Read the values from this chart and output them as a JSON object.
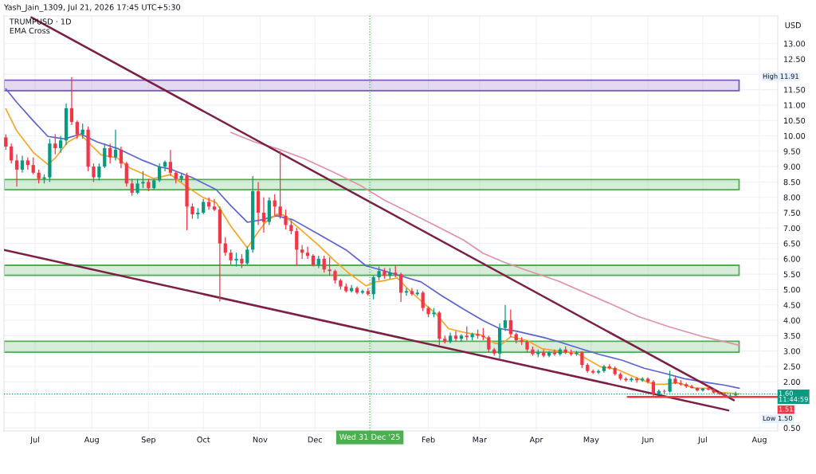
{
  "chart_data": {
    "type": "candlestick",
    "title": "TRUMPUSD · 1D",
    "subtitle": "EMA Cross",
    "ylabel": "USD",
    "annotations": [
      "Yash_Jain_1309, Jul 21, 2026 17:45 UTC+5:30",
      "High 11.91",
      {
        "text": "1.51",
        "x": "2026-08-11",
        "y": 1.51
      },
      "Low 1.50"
    ],
    "xlim": [
      "2025-06-14",
      "2026-08-11"
    ],
    "xticks": [
      {
        "value": "2025-07-01",
        "label": "Jul"
      },
      {
        "value": "2025-08-01",
        "label": "Aug"
      },
      {
        "value": "2025-09-01",
        "label": "Sep"
      },
      {
        "value": "2025-10-01",
        "label": "Oct"
      },
      {
        "value": "2025-11-01",
        "label": "Nov"
      },
      {
        "value": "2025-12-01",
        "label": "Dec"
      },
      {
        "value": "2026-01-01",
        "label": null
      },
      {
        "value": "2026-02-01",
        "label": "Feb"
      },
      {
        "value": "2026-03-01",
        "label": "Mar"
      },
      {
        "value": "2026-04-01",
        "label": "Apr"
      },
      {
        "value": "2026-05-01",
        "label": "May"
      },
      {
        "value": "2026-06-01",
        "label": "Jun"
      },
      {
        "value": "2026-07-01",
        "label": "Jul"
      },
      {
        "value": "2026-08-01",
        "label": "Aug"
      }
    ],
    "ylim": [
      0.4,
      13.9
    ],
    "yticks": [
      {
        "value": 0.5,
        "label": "0.50"
      },
      {
        "value": 1.0,
        "label": null
      },
      {
        "value": 1.5,
        "label": null
      },
      {
        "value": 2.0,
        "label": "2.00"
      },
      {
        "value": 2.5,
        "label": "2.50"
      },
      {
        "value": 3.0,
        "label": "3.00"
      },
      {
        "value": 3.5,
        "label": "3.50"
      },
      {
        "value": 4.0,
        "label": "4.00"
      },
      {
        "value": 4.5,
        "label": "4.50"
      },
      {
        "value": 5.0,
        "label": "5.00"
      },
      {
        "value": 5.5,
        "label": "5.50"
      },
      {
        "value": 6.0,
        "label": "6.00"
      },
      {
        "value": 6.5,
        "label": "6.50"
      },
      {
        "value": 7.0,
        "label": "7.00"
      },
      {
        "value": 7.5,
        "label": "7.50"
      },
      {
        "value": 8.0,
        "label": "8.00"
      },
      {
        "value": 8.5,
        "label": "8.50"
      },
      {
        "value": 9.0,
        "label": "9.00"
      },
      {
        "value": 9.5,
        "label": "9.50"
      },
      {
        "value": 10.0,
        "label": "10.00"
      },
      {
        "value": 10.5,
        "label": "10.50"
      },
      {
        "value": 11.0,
        "label": "11.00"
      },
      {
        "value": 11.5,
        "label": "11.50"
      },
      {
        "value": 12.0,
        "label": null
      },
      {
        "value": 12.5,
        "label": "12.50"
      },
      {
        "value": 13.0,
        "label": "13.00"
      }
    ],
    "grid": true,
    "bands": [
      {
        "axis": "y",
        "from": 11.47,
        "to": 11.81,
        "color": "#7e57c2"
      },
      {
        "axis": "y",
        "from": 8.25,
        "to": 8.58,
        "color": "#4caf50"
      },
      {
        "axis": "y",
        "from": 5.46,
        "to": 5.79,
        "color": "#4caf50"
      },
      {
        "axis": "y",
        "from": 2.96,
        "to": 3.32,
        "color": "#4caf50"
      }
    ],
    "ref_lines": [
      {
        "axis": "y",
        "value": 1.6,
        "label": "1.60\n11:44:59",
        "color": "#089981",
        "line_style": "dotted"
      },
      {
        "axis": "x",
        "value": "2025-12-31",
        "label": "Wed 31 Dec '25",
        "color": "#4caf50",
        "line_style": "dotted"
      }
    ],
    "x": [
      "2025-06-15",
      "2025-06-18",
      "2025-06-21",
      "2025-06-24",
      "2025-06-27",
      "2025-06-30",
      "2025-07-03",
      "2025-07-06",
      "2025-07-09",
      "2025-07-12",
      "2025-07-15",
      "2025-07-18",
      "2025-07-21",
      "2025-07-24",
      "2025-07-27",
      "2025-07-30",
      "2025-08-02",
      "2025-08-05",
      "2025-08-08",
      "2025-08-11",
      "2025-08-14",
      "2025-08-17",
      "2025-08-20",
      "2025-08-23",
      "2025-08-26",
      "2025-08-29",
      "2025-09-01",
      "2025-09-04",
      "2025-09-07",
      "2025-09-10",
      "2025-09-13",
      "2025-09-16",
      "2025-09-19",
      "2025-09-22",
      "2025-09-25",
      "2025-09-28",
      "2025-10-01",
      "2025-10-04",
      "2025-10-07",
      "2025-10-10",
      "2025-10-13",
      "2025-10-16",
      "2025-10-19",
      "2025-10-22",
      "2025-10-25",
      "2025-10-28",
      "2025-10-31",
      "2025-11-03",
      "2025-11-06",
      "2025-11-09",
      "2025-11-12",
      "2025-11-15",
      "2025-11-18",
      "2025-11-21",
      "2025-11-24",
      "2025-11-27",
      "2025-11-30",
      "2025-12-03",
      "2025-12-06",
      "2025-12-09",
      "2025-12-12",
      "2025-12-15",
      "2025-12-18",
      "2025-12-21",
      "2025-12-24",
      "2025-12-27",
      "2025-12-30",
      "2026-01-02",
      "2026-01-05",
      "2026-01-08",
      "2026-01-11",
      "2026-01-14",
      "2026-01-17",
      "2026-01-20",
      "2026-01-23",
      "2026-01-26",
      "2026-01-29",
      "2026-02-01",
      "2026-02-04",
      "2026-02-07",
      "2026-02-10",
      "2026-02-13",
      "2026-02-16",
      "2026-02-19",
      "2026-02-22",
      "2026-02-25",
      "2026-02-28",
      "2026-03-03",
      "2026-03-06",
      "2026-03-09",
      "2026-03-12",
      "2026-03-15",
      "2026-03-18",
      "2026-03-21",
      "2026-03-24",
      "2026-03-27",
      "2026-03-30",
      "2026-04-02",
      "2026-04-05",
      "2026-04-08",
      "2026-04-11",
      "2026-04-14",
      "2026-04-17",
      "2026-04-20",
      "2026-04-23",
      "2026-04-26",
      "2026-04-29",
      "2026-05-02",
      "2026-05-05",
      "2026-05-08",
      "2026-05-11",
      "2026-05-14",
      "2026-05-17",
      "2026-05-20",
      "2026-05-23",
      "2026-05-26",
      "2026-05-29",
      "2026-06-01",
      "2026-06-04",
      "2026-06-07",
      "2026-06-10",
      "2026-06-13",
      "2026-06-16",
      "2026-06-19",
      "2026-06-22",
      "2026-06-25",
      "2026-06-28",
      "2026-07-01",
      "2026-07-04",
      "2026-07-07",
      "2026-07-10",
      "2026-07-13",
      "2026-07-16",
      "2026-07-19"
    ],
    "ohlc": [
      [
        9.95,
        10.05,
        9.55,
        9.65
      ],
      [
        9.65,
        9.75,
        9.1,
        9.2
      ],
      [
        9.2,
        9.4,
        8.35,
        8.9
      ],
      [
        8.9,
        9.35,
        8.8,
        9.2
      ],
      [
        9.2,
        9.3,
        8.9,
        9.05
      ],
      [
        9.05,
        9.3,
        8.75,
        8.8
      ],
      [
        8.8,
        8.9,
        8.45,
        8.6
      ],
      [
        8.6,
        8.75,
        8.45,
        8.65
      ],
      [
        8.65,
        9.9,
        8.5,
        9.75
      ],
      [
        9.75,
        10.05,
        9.4,
        9.6
      ],
      [
        9.6,
        10.0,
        9.45,
        9.85
      ],
      [
        9.85,
        11.05,
        9.7,
        10.9
      ],
      [
        10.9,
        11.91,
        10.35,
        10.45
      ],
      [
        10.45,
        10.5,
        9.9,
        10.05
      ],
      [
        10.05,
        10.4,
        9.9,
        10.2
      ],
      [
        10.2,
        10.3,
        8.85,
        9.0
      ],
      [
        9.0,
        9.1,
        8.5,
        8.65
      ],
      [
        8.65,
        9.1,
        8.55,
        9.0
      ],
      [
        9.0,
        9.75,
        8.95,
        9.6
      ],
      [
        9.6,
        9.75,
        9.1,
        9.3
      ],
      [
        9.3,
        10.2,
        9.2,
        9.55
      ],
      [
        9.55,
        9.65,
        8.95,
        9.1
      ],
      [
        9.1,
        9.15,
        8.35,
        8.45
      ],
      [
        8.45,
        8.6,
        8.05,
        8.15
      ],
      [
        8.15,
        8.6,
        8.1,
        8.45
      ],
      [
        8.45,
        8.85,
        8.3,
        8.5
      ],
      [
        8.5,
        8.6,
        8.2,
        8.3
      ],
      [
        8.3,
        8.6,
        8.25,
        8.55
      ],
      [
        8.55,
        9.1,
        8.5,
        9.0
      ],
      [
        9.0,
        9.2,
        8.85,
        9.15
      ],
      [
        9.15,
        9.54,
        8.7,
        8.8
      ],
      [
        8.8,
        8.85,
        8.45,
        8.6
      ],
      [
        8.6,
        8.8,
        8.5,
        8.7
      ],
      [
        8.7,
        8.8,
        6.93,
        7.7
      ],
      [
        7.7,
        7.8,
        7.3,
        7.45
      ],
      [
        7.45,
        7.65,
        7.3,
        7.5
      ],
      [
        7.5,
        7.95,
        7.45,
        7.85
      ],
      [
        7.85,
        8.0,
        7.6,
        7.7
      ],
      [
        7.7,
        7.95,
        7.55,
        7.6
      ],
      [
        7.6,
        7.7,
        4.61,
        6.5
      ],
      [
        6.5,
        6.7,
        6.1,
        6.2
      ],
      [
        6.2,
        6.3,
        5.8,
        5.95
      ],
      [
        5.95,
        6.2,
        5.75,
        6.0
      ],
      [
        6.0,
        6.15,
        5.7,
        5.85
      ],
      [
        5.85,
        6.4,
        5.8,
        6.3
      ],
      [
        6.3,
        8.69,
        6.2,
        8.2
      ],
      [
        8.2,
        8.5,
        7.1,
        7.5
      ],
      [
        7.5,
        8.0,
        6.85,
        7.2
      ],
      [
        7.2,
        8.0,
        7.1,
        7.9
      ],
      [
        7.9,
        8.1,
        7.4,
        7.7
      ],
      [
        7.7,
        9.51,
        7.3,
        7.4
      ],
      [
        7.4,
        7.6,
        6.95,
        7.1
      ],
      [
        7.1,
        7.25,
        6.8,
        6.9
      ],
      [
        6.9,
        7.0,
        5.77,
        6.3
      ],
      [
        6.3,
        6.45,
        6.0,
        6.2
      ],
      [
        6.2,
        6.4,
        6.0,
        6.1
      ],
      [
        6.1,
        6.15,
        5.75,
        5.8
      ],
      [
        5.8,
        6.1,
        5.7,
        6.0
      ],
      [
        6.0,
        6.1,
        5.55,
        5.65
      ],
      [
        5.65,
        6.05,
        5.45,
        5.6
      ],
      [
        5.6,
        5.65,
        5.2,
        5.3
      ],
      [
        5.3,
        5.35,
        5.0,
        5.1
      ],
      [
        5.1,
        5.2,
        4.9,
        4.95
      ],
      [
        4.95,
        5.15,
        4.9,
        5.05
      ],
      [
        5.05,
        5.1,
        4.85,
        4.9
      ],
      [
        4.9,
        5.0,
        4.85,
        4.95
      ],
      [
        4.95,
        5.05,
        4.8,
        4.85
      ],
      [
        4.85,
        5.45,
        4.68,
        5.4
      ],
      [
        5.4,
        5.75,
        5.3,
        5.6
      ],
      [
        5.6,
        5.7,
        5.35,
        5.45
      ],
      [
        5.45,
        5.7,
        5.35,
        5.55
      ],
      [
        5.55,
        5.77,
        5.4,
        5.5
      ],
      [
        5.5,
        5.55,
        4.6,
        4.9
      ],
      [
        4.9,
        5.05,
        4.8,
        4.95
      ],
      [
        4.95,
        5.05,
        4.8,
        4.85
      ],
      [
        4.85,
        5.0,
        4.8,
        4.9
      ],
      [
        4.9,
        4.95,
        4.3,
        4.4
      ],
      [
        4.4,
        4.45,
        4.1,
        4.2
      ],
      [
        4.2,
        4.4,
        4.1,
        4.25
      ],
      [
        4.25,
        4.3,
        3.19,
        3.4
      ],
      [
        3.4,
        3.5,
        3.25,
        3.3
      ],
      [
        3.3,
        3.6,
        3.25,
        3.5
      ],
      [
        3.5,
        3.65,
        3.3,
        3.4
      ],
      [
        3.4,
        3.55,
        3.3,
        3.5
      ],
      [
        3.5,
        3.8,
        3.35,
        3.45
      ],
      [
        3.45,
        3.6,
        3.35,
        3.55
      ],
      [
        3.55,
        3.7,
        3.4,
        3.5
      ],
      [
        3.5,
        3.75,
        3.35,
        3.45
      ],
      [
        3.45,
        3.5,
        2.95,
        3.05
      ],
      [
        3.05,
        3.1,
        2.85,
        2.92
      ],
      [
        2.92,
        3.9,
        2.75,
        3.75
      ],
      [
        3.75,
        4.5,
        3.65,
        4.0
      ],
      [
        4.0,
        4.35,
        3.45,
        3.55
      ],
      [
        3.55,
        3.6,
        3.25,
        3.35
      ],
      [
        3.35,
        3.45,
        3.2,
        3.3
      ],
      [
        3.3,
        3.35,
        2.95,
        3.05
      ],
      [
        3.05,
        3.15,
        2.85,
        2.9
      ],
      [
        2.9,
        3.05,
        2.8,
        2.95
      ],
      [
        2.95,
        3.05,
        2.8,
        2.85
      ],
      [
        2.85,
        3.0,
        2.8,
        2.95
      ],
      [
        2.95,
        3.05,
        2.85,
        2.9
      ],
      [
        2.9,
        3.1,
        2.85,
        3.05
      ],
      [
        3.05,
        3.15,
        2.9,
        2.95
      ],
      [
        2.95,
        3.05,
        2.85,
        2.9
      ],
      [
        2.9,
        3.0,
        2.85,
        2.95
      ],
      [
        2.95,
        3.0,
        2.45,
        2.55
      ],
      [
        2.55,
        2.6,
        2.3,
        2.35
      ],
      [
        2.35,
        2.4,
        2.25,
        2.3
      ],
      [
        2.3,
        2.4,
        2.25,
        2.35
      ],
      [
        2.35,
        2.55,
        2.3,
        2.5
      ],
      [
        2.5,
        2.57,
        2.4,
        2.45
      ],
      [
        2.45,
        2.5,
        2.2,
        2.25
      ],
      [
        2.25,
        2.3,
        2.05,
        2.1
      ],
      [
        2.1,
        2.15,
        2.0,
        2.05
      ],
      [
        2.05,
        2.15,
        2.0,
        2.1
      ],
      [
        2.1,
        2.15,
        1.97,
        2.05
      ],
      [
        2.05,
        2.15,
        2.0,
        2.1
      ],
      [
        2.1,
        2.15,
        1.95,
        2.0
      ],
      [
        2.0,
        2.05,
        1.53,
        1.6
      ],
      [
        1.6,
        1.75,
        1.58,
        1.7
      ],
      [
        1.7,
        1.75,
        1.62,
        1.68
      ],
      [
        1.68,
        2.36,
        1.65,
        2.1
      ],
      [
        2.1,
        2.2,
        1.92,
        1.95
      ],
      [
        1.95,
        2.05,
        1.88,
        1.92
      ],
      [
        1.92,
        1.97,
        1.8,
        1.85
      ],
      [
        1.85,
        1.9,
        1.78,
        1.8
      ],
      [
        1.8,
        1.82,
        1.68,
        1.72
      ],
      [
        1.72,
        1.8,
        1.68,
        1.78
      ],
      [
        1.78,
        1.88,
        1.72,
        1.75
      ],
      [
        1.75,
        1.78,
        1.62,
        1.65
      ],
      [
        1.65,
        1.7,
        1.58,
        1.6
      ],
      [
        1.6,
        1.65,
        1.52,
        1.55
      ],
      [
        1.55,
        1.6,
        1.5,
        1.56
      ],
      [
        1.56,
        1.68,
        1.54,
        1.6
      ]
    ],
    "series": [
      {
        "type": "line",
        "color": "#e091a8",
        "x": [
          "2025-10-16",
          "2025-10-29",
          "2025-11-10",
          "2025-11-25",
          "2025-12-11",
          "2025-12-26",
          "2026-01-08",
          "2026-02-03",
          "2026-02-20",
          "2026-03-03",
          "2026-03-14",
          "2026-03-26",
          "2026-04-13",
          "2026-05-11",
          "2026-05-27",
          "2026-06-13",
          "2026-07-01",
          "2026-07-21"
        ],
        "values": [
          10.11,
          9.8,
          9.59,
          9.26,
          8.82,
          8.38,
          7.91,
          7.14,
          6.62,
          6.18,
          5.9,
          5.64,
          5.28,
          4.55,
          4.12,
          3.78,
          3.47,
          3.19
        ]
      },
      {
        "type": "line",
        "color": "#5c63d1",
        "x": [
          "2025-06-15",
          "2025-06-21",
          "2025-06-30",
          "2025-07-08",
          "2025-07-17",
          "2025-07-26",
          "2025-08-04",
          "2025-08-15",
          "2025-08-29",
          "2025-09-07",
          "2025-09-13",
          "2025-09-25",
          "2025-10-08",
          "2025-10-16",
          "2025-10-25",
          "2025-11-02",
          "2025-11-10",
          "2025-11-19",
          "2025-12-03",
          "2025-12-18",
          "2025-12-29",
          "2026-01-06",
          "2026-01-16",
          "2026-01-28",
          "2026-02-08",
          "2026-02-20",
          "2026-03-03",
          "2026-03-12",
          "2026-03-21",
          "2026-04-05",
          "2026-04-13",
          "2026-04-25",
          "2026-05-06",
          "2026-05-18",
          "2026-05-30",
          "2026-06-10",
          "2026-06-21",
          "2026-07-04",
          "2026-07-13",
          "2026-07-21"
        ],
        "values": [
          11.53,
          11.09,
          10.49,
          9.98,
          9.9,
          10.06,
          9.8,
          9.59,
          9.2,
          8.99,
          8.92,
          8.64,
          8.25,
          7.73,
          7.19,
          7.27,
          7.4,
          7.27,
          6.8,
          6.29,
          5.77,
          5.64,
          5.46,
          5.25,
          4.81,
          4.37,
          3.99,
          3.73,
          3.65,
          3.44,
          3.31,
          3.08,
          2.88,
          2.7,
          2.44,
          2.28,
          2.1,
          1.97,
          1.89,
          1.79
        ]
      },
      {
        "type": "line",
        "color": "#f5a623",
        "x": [
          "2025-06-15",
          "2025-06-21",
          "2025-06-30",
          "2025-07-08",
          "2025-07-12",
          "2025-07-19",
          "2025-07-26",
          "2025-07-30",
          "2025-08-06",
          "2025-08-15",
          "2025-08-22",
          "2025-09-04",
          "2025-09-13",
          "2025-09-21",
          "2025-10-01",
          "2025-10-08",
          "2025-10-16",
          "2025-10-25",
          "2025-10-31",
          "2025-11-04",
          "2025-11-10",
          "2025-11-14",
          "2025-11-23",
          "2025-12-03",
          "2025-12-12",
          "2025-12-20",
          "2025-12-29",
          "2026-01-03",
          "2026-01-07",
          "2026-01-15",
          "2026-01-20",
          "2026-01-28",
          "2026-02-05",
          "2026-02-12",
          "2026-02-21",
          "2026-03-02",
          "2026-03-09",
          "2026-03-13",
          "2026-03-18",
          "2026-03-27",
          "2026-04-04",
          "2026-04-13",
          "2026-04-22",
          "2026-04-27",
          "2026-05-06",
          "2026-05-15",
          "2026-05-27",
          "2026-06-04",
          "2026-06-10",
          "2026-06-17",
          "2026-06-27",
          "2026-07-04",
          "2026-07-09",
          "2026-07-21"
        ],
        "values": [
          10.88,
          10.16,
          9.46,
          9.07,
          9.28,
          9.8,
          10.03,
          9.8,
          9.38,
          9.28,
          8.95,
          8.61,
          8.74,
          8.38,
          7.99,
          7.83,
          7.06,
          6.36,
          6.88,
          7.19,
          7.45,
          7.42,
          6.96,
          6.44,
          5.92,
          5.51,
          5.12,
          5.25,
          5.28,
          5.38,
          5.07,
          4.63,
          4.22,
          3.73,
          3.6,
          3.52,
          3.26,
          3.22,
          3.47,
          3.34,
          3.08,
          3.0,
          2.95,
          2.8,
          2.49,
          2.41,
          2.1,
          1.92,
          1.92,
          1.97,
          1.79,
          1.79,
          1.66,
          1.61
        ]
      },
      {
        "type": "line",
        "color": "#7b1f45",
        "x": [
          "2025-06-29",
          "2026-07-18"
        ],
        "values": [
          13.85,
          1.4
        ]
      },
      {
        "type": "line",
        "color": "#7b1f45",
        "x": [
          "2025-06-14",
          "2026-07-15"
        ],
        "values": [
          6.29,
          1.07
        ]
      },
      {
        "type": "line",
        "color": "#f23645",
        "x": [
          "2026-05-21",
          "2026-08-11"
        ],
        "values": [
          1.51,
          1.51
        ]
      }
    ]
  }
}
